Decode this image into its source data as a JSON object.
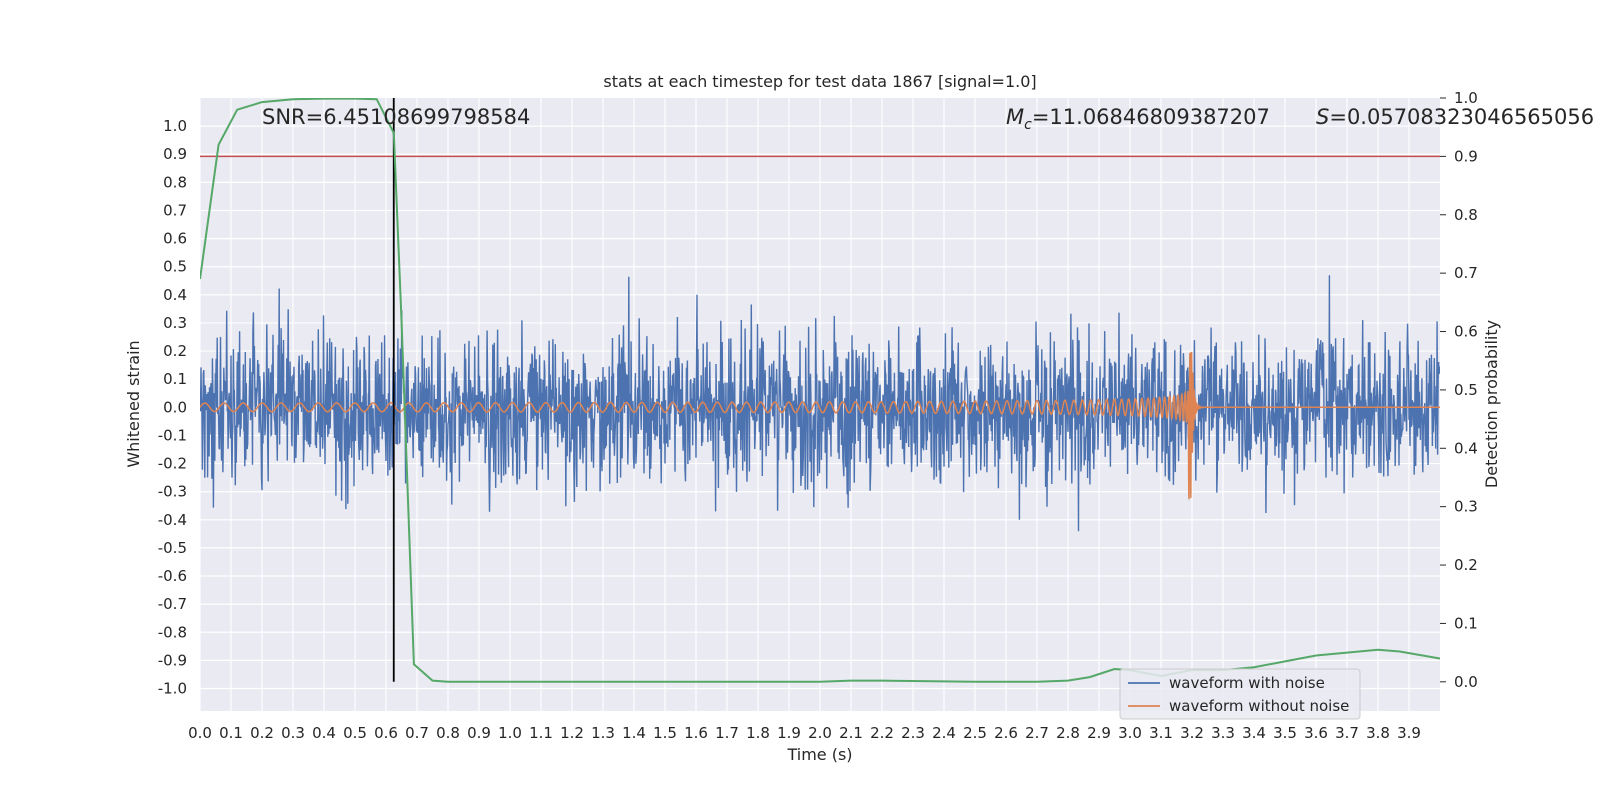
{
  "chart_data": {
    "type": "line",
    "title": "stats at each timestep for test data 1867 [signal=1.0]",
    "xlabel": "Time (s)",
    "ylabel_left": "Whitened strain",
    "ylabel_right": "Detection probability",
    "xlim": [
      0.0,
      4.0
    ],
    "ylim_left": [
      -1.08,
      1.1
    ],
    "ylim_right": [
      -0.05,
      1.0
    ],
    "x_ticks": [
      "0.0",
      "0.1",
      "0.2",
      "0.3",
      "0.4",
      "0.5",
      "0.6",
      "0.7",
      "0.8",
      "0.9",
      "1.0",
      "1.1",
      "1.2",
      "1.3",
      "1.4",
      "1.5",
      "1.6",
      "1.7",
      "1.8",
      "1.9",
      "2.0",
      "2.1",
      "2.2",
      "2.3",
      "2.4",
      "2.5",
      "2.6",
      "2.7",
      "2.8",
      "2.9",
      "3.0",
      "3.1",
      "3.2",
      "3.3",
      "3.4",
      "3.5",
      "3.6",
      "3.7",
      "3.8",
      "3.9"
    ],
    "y_ticks_left": [
      "-1.0",
      "-0.9",
      "-0.8",
      "-0.7",
      "-0.6",
      "-0.5",
      "-0.4",
      "-0.3",
      "-0.2",
      "-0.1",
      "0.0",
      "0.1",
      "0.2",
      "0.3",
      "0.4",
      "0.5",
      "0.6",
      "0.7",
      "0.8",
      "0.9",
      "1.0"
    ],
    "y_ticks_right": [
      "0.0",
      "0.1",
      "0.2",
      "0.3",
      "0.4",
      "0.5",
      "0.6",
      "0.7",
      "0.8",
      "0.9",
      "1.0"
    ],
    "annotations": {
      "snr": "SNR=6.45108699798584",
      "mc_symbol": "M",
      "mc_sub": "c",
      "mc_value": "=11.06846809387207",
      "s_symbol": "S",
      "s_value": "=0.05708323046565056"
    },
    "threshold_line": {
      "y_right": 0.9,
      "color": "#c44e52"
    },
    "event_marker": {
      "x": 0.625,
      "color": "#000000"
    },
    "series": [
      {
        "name": "waveform with noise",
        "color": "#4c72b0",
        "kind": "noise",
        "amplitude_typical": 0.45,
        "peak_abs": 1.0
      },
      {
        "name": "waveform without noise",
        "color": "#dd8452",
        "kind": "chirp",
        "start_freq_hz": 16,
        "start_amp": 0.015,
        "merger_time": 3.2,
        "merger_peak": 0.2,
        "merger_trough": -0.33
      },
      {
        "name": "detection probability",
        "color": "#55a868",
        "axis": "right",
        "x": [
          0.0,
          0.06,
          0.12,
          0.2,
          0.3,
          0.4,
          0.5,
          0.57,
          0.625,
          0.65,
          0.69,
          0.75,
          0.8,
          1.0,
          1.5,
          2.0,
          2.1,
          2.2,
          2.5,
          2.7,
          2.8,
          2.87,
          2.95,
          3.0,
          3.05,
          3.1,
          3.2,
          3.3,
          3.4,
          3.5,
          3.6,
          3.7,
          3.8,
          3.87,
          4.0
        ],
        "y": [
          0.69,
          0.92,
          0.98,
          0.993,
          0.998,
          0.999,
          0.999,
          0.998,
          0.94,
          0.62,
          0.03,
          0.002,
          0.0,
          0.0,
          0.0,
          0.0,
          0.002,
          0.002,
          0.0,
          0.0,
          0.002,
          0.008,
          0.022,
          0.02,
          0.015,
          0.01,
          0.02,
          0.02,
          0.025,
          0.035,
          0.045,
          0.05,
          0.055,
          0.052,
          0.04
        ]
      }
    ],
    "legend": {
      "location": "lower-right",
      "entries": [
        "waveform with noise",
        "waveform without noise"
      ]
    },
    "grid": true
  }
}
